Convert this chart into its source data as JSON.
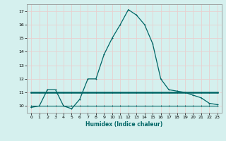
{
  "xlabel": "Humidex (Indice chaleur)",
  "ylabel": "",
  "background_color": "#d5f0ee",
  "grid_color": "#f0fafa",
  "line_color": "#006666",
  "xlim": [
    -0.5,
    23.5
  ],
  "ylim": [
    9.5,
    17.5
  ],
  "xticks": [
    0,
    1,
    2,
    3,
    4,
    5,
    6,
    7,
    8,
    9,
    10,
    11,
    12,
    13,
    14,
    15,
    16,
    17,
    18,
    19,
    20,
    21,
    22,
    23
  ],
  "yticks": [
    10,
    11,
    12,
    13,
    14,
    15,
    16,
    17
  ],
  "series1_x": [
    0,
    1,
    2,
    3,
    4,
    5,
    6,
    7,
    8,
    9,
    10,
    11,
    12,
    13,
    14,
    15,
    16,
    17,
    18,
    19,
    20,
    21,
    22,
    23
  ],
  "series1_y": [
    9.9,
    10.0,
    11.2,
    11.2,
    10.0,
    9.8,
    10.5,
    12.0,
    12.0,
    13.8,
    15.0,
    16.0,
    17.1,
    16.7,
    16.0,
    14.6,
    12.0,
    11.2,
    11.1,
    11.0,
    10.8,
    10.6,
    10.2,
    10.1
  ],
  "series2_x": [
    0,
    1,
    2,
    3,
    4,
    5,
    6,
    7,
    8,
    9,
    10,
    11,
    12,
    13,
    14,
    15,
    16,
    17,
    18,
    19,
    20,
    21,
    22,
    23
  ],
  "series2_y": [
    11.0,
    11.0,
    11.0,
    11.0,
    11.0,
    11.0,
    11.0,
    11.0,
    11.0,
    11.0,
    11.0,
    11.0,
    11.0,
    11.0,
    11.0,
    11.0,
    11.0,
    11.0,
    11.0,
    11.0,
    11.0,
    11.0,
    11.0,
    11.0
  ],
  "series3_x": [
    0,
    1,
    2,
    3,
    4,
    5,
    6,
    7,
    8,
    9,
    10,
    11,
    12,
    13,
    14,
    15,
    16,
    17,
    18,
    19,
    20,
    21,
    22,
    23
  ],
  "series3_y": [
    10.0,
    10.0,
    10.0,
    10.0,
    10.0,
    10.0,
    10.0,
    10.0,
    10.0,
    10.0,
    10.0,
    10.0,
    10.0,
    10.0,
    10.0,
    10.0,
    10.0,
    10.0,
    10.0,
    10.0,
    10.0,
    10.0,
    10.0,
    10.0
  ]
}
